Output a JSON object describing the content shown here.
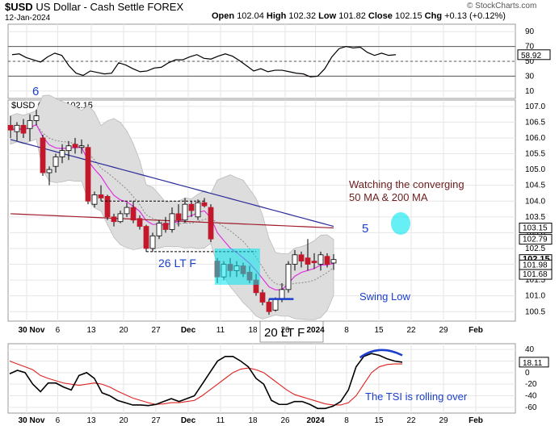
{
  "header": {
    "symbol": "$USD",
    "name": "US Dollar - Cash Settle",
    "exchange": "FOREX",
    "date": "12-Jan-2024",
    "credit": "© StockCharts.com",
    "open_label": "Open",
    "open": "102.04",
    "high_label": "High",
    "high": "102.32",
    "low_label": "Low",
    "low": "101.82",
    "close_label": "Close",
    "close": "102.15",
    "chg_label": "Chg",
    "chg": "+0.13 (+0.12%)",
    "main_legend": "$USD (Daily) 102.15"
  },
  "colors": {
    "up": "#ffffff",
    "down": "#c2182b",
    "bar_outline": "#000000",
    "ma50": "#2b2b99",
    "ma200": "#a01c2c",
    "bollinger_fill": "#dddddd",
    "bollinger_mid": "#888888",
    "magenta": "#dd33dd",
    "cyan": "#00e5ee",
    "rsi_band": "#7a3038",
    "annotation_blue": "#1a3fcc",
    "annotation_dark": "#6b1e1e"
  },
  "x_axis": {
    "labels": [
      "30 Nov",
      "6",
      "13",
      "20",
      "27",
      "Dec",
      "11",
      "18",
      "26",
      "2024",
      "8",
      "15",
      "22",
      "29",
      "Feb"
    ],
    "bold": [
      "Nov",
      "Dec",
      "2024",
      "Feb"
    ]
  },
  "rsi": {
    "value_label": "58.92",
    "ticks": [
      "90",
      "70",
      "50",
      "30",
      "10"
    ],
    "levels": [
      70,
      30
    ],
    "values": [
      59,
      60,
      55,
      52,
      49,
      56,
      61,
      58,
      44,
      34,
      31,
      37,
      35,
      33,
      34,
      48,
      45,
      40,
      36,
      37,
      41,
      42,
      48,
      52,
      52,
      56,
      59,
      54,
      53,
      57,
      60,
      57,
      51,
      44,
      37,
      40,
      36,
      38,
      38,
      36,
      34,
      33,
      29,
      30,
      40,
      56,
      67,
      70,
      68,
      69,
      62,
      58,
      61,
      58,
      59
    ]
  },
  "price": {
    "ticks": [
      "107.0",
      "106.5",
      "106.0",
      "105.5",
      "105.0",
      "104.5",
      "104.0",
      "103.5",
      "103.0",
      "102.5",
      "102.0",
      "101.5",
      "101.0",
      "100.5"
    ],
    "ylim": [
      100.2,
      107.2
    ],
    "boxed_labels": [
      "103.15",
      "102.79",
      "102.15",
      "101.98",
      "101.68"
    ],
    "candles": [
      {
        "o": 106.4,
        "h": 106.7,
        "l": 106.0,
        "c": 106.25
      },
      {
        "o": 106.2,
        "h": 106.5,
        "l": 105.9,
        "c": 106.4
      },
      {
        "o": 106.4,
        "h": 106.6,
        "l": 106.0,
        "c": 106.15
      },
      {
        "o": 106.3,
        "h": 106.75,
        "l": 105.9,
        "c": 106.55
      },
      {
        "o": 106.55,
        "h": 106.9,
        "l": 106.4,
        "c": 106.7
      },
      {
        "o": 106.0,
        "h": 106.1,
        "l": 104.8,
        "c": 104.9
      },
      {
        "o": 104.9,
        "h": 105.1,
        "l": 104.5,
        "c": 105.0
      },
      {
        "o": 105.1,
        "h": 105.5,
        "l": 104.9,
        "c": 105.4
      },
      {
        "o": 105.4,
        "h": 105.8,
        "l": 105.2,
        "c": 105.6
      },
      {
        "o": 105.6,
        "h": 105.9,
        "l": 105.3,
        "c": 105.75
      },
      {
        "o": 105.8,
        "h": 106.0,
        "l": 105.5,
        "c": 105.7
      },
      {
        "o": 105.7,
        "h": 105.95,
        "l": 105.5,
        "c": 105.75
      },
      {
        "o": 105.7,
        "h": 105.8,
        "l": 103.9,
        "c": 104.0
      },
      {
        "o": 103.9,
        "h": 104.3,
        "l": 103.8,
        "c": 104.2
      },
      {
        "o": 104.2,
        "h": 104.5,
        "l": 104.0,
        "c": 104.1
      },
      {
        "o": 104.15,
        "h": 104.2,
        "l": 103.4,
        "c": 103.5
      },
      {
        "o": 103.5,
        "h": 103.6,
        "l": 103.2,
        "c": 103.35
      },
      {
        "o": 103.35,
        "h": 103.7,
        "l": 103.3,
        "c": 103.6
      },
      {
        "o": 103.6,
        "h": 103.95,
        "l": 103.5,
        "c": 103.8
      },
      {
        "o": 103.8,
        "h": 104.0,
        "l": 103.3,
        "c": 103.4
      },
      {
        "o": 103.45,
        "h": 103.55,
        "l": 103.1,
        "c": 103.2
      },
      {
        "o": 103.2,
        "h": 103.25,
        "l": 102.4,
        "c": 102.5
      },
      {
        "o": 102.5,
        "h": 103.0,
        "l": 102.4,
        "c": 102.9
      },
      {
        "o": 102.9,
        "h": 103.4,
        "l": 102.8,
        "c": 103.3
      },
      {
        "o": 103.3,
        "h": 103.5,
        "l": 103.0,
        "c": 103.1
      },
      {
        "o": 103.1,
        "h": 103.8,
        "l": 103.0,
        "c": 103.6
      },
      {
        "o": 103.6,
        "h": 103.9,
        "l": 103.2,
        "c": 103.4
      },
      {
        "o": 103.4,
        "h": 104.1,
        "l": 103.3,
        "c": 103.9
      },
      {
        "o": 103.9,
        "h": 104.0,
        "l": 103.5,
        "c": 103.7
      },
      {
        "o": 103.5,
        "h": 104.05,
        "l": 103.4,
        "c": 103.95
      },
      {
        "o": 103.95,
        "h": 104.1,
        "l": 103.8,
        "c": 103.85
      },
      {
        "o": 103.8,
        "h": 103.9,
        "l": 102.7,
        "c": 102.8
      },
      {
        "o": 102.1,
        "h": 102.2,
        "l": 101.4,
        "c": 101.6
      },
      {
        "o": 101.6,
        "h": 102.1,
        "l": 101.5,
        "c": 102.0
      },
      {
        "o": 102.0,
        "h": 102.2,
        "l": 101.6,
        "c": 101.8
      },
      {
        "o": 101.8,
        "h": 102.1,
        "l": 101.6,
        "c": 101.95
      },
      {
        "o": 101.95,
        "h": 102.05,
        "l": 101.6,
        "c": 101.7
      },
      {
        "o": 101.75,
        "h": 101.95,
        "l": 101.4,
        "c": 101.5
      },
      {
        "o": 101.5,
        "h": 101.7,
        "l": 101.0,
        "c": 101.1
      },
      {
        "o": 101.1,
        "h": 101.2,
        "l": 100.7,
        "c": 100.8
      },
      {
        "o": 100.8,
        "h": 100.9,
        "l": 100.4,
        "c": 100.5
      },
      {
        "o": 100.55,
        "h": 100.95,
        "l": 100.5,
        "c": 100.9
      },
      {
        "o": 100.9,
        "h": 101.4,
        "l": 100.8,
        "c": 101.2
      },
      {
        "o": 101.2,
        "h": 102.1,
        "l": 101.1,
        "c": 102.0
      },
      {
        "o": 102.0,
        "h": 102.45,
        "l": 101.8,
        "c": 102.3
      },
      {
        "o": 102.3,
        "h": 102.4,
        "l": 101.9,
        "c": 102.1
      },
      {
        "o": 102.2,
        "h": 102.8,
        "l": 101.8,
        "c": 102.0
      },
      {
        "o": 102.1,
        "h": 102.35,
        "l": 101.85,
        "c": 102.05
      },
      {
        "o": 102.0,
        "h": 102.4,
        "l": 101.8,
        "c": 102.3
      },
      {
        "o": 102.25,
        "h": 102.35,
        "l": 101.9,
        "c": 102.0
      },
      {
        "o": 102.04,
        "h": 102.32,
        "l": 101.82,
        "c": 102.15
      }
    ]
  },
  "tsi": {
    "value_label": "18.11",
    "ticks": [
      "40",
      "20",
      "0",
      "-20",
      "-40",
      "-60"
    ],
    "tsi_values": [
      -2,
      4,
      0,
      -20,
      -33,
      -18,
      -18,
      -25,
      -30,
      -5,
      0,
      -10,
      -35,
      -40,
      -48,
      -52,
      -56,
      -56,
      -57,
      -55,
      -50,
      -45,
      -50,
      -45,
      -40,
      -20,
      0,
      20,
      28,
      28,
      20,
      10,
      -10,
      -20,
      -48,
      -55,
      -55,
      -50,
      -50,
      -55,
      -62,
      -62,
      -58,
      -50,
      -30,
      10,
      28,
      33,
      30,
      24,
      20,
      18
    ],
    "signal_values": [
      20,
      15,
      10,
      5,
      -5,
      -10,
      -14,
      -18,
      -20,
      -22,
      -20,
      -18,
      -20,
      -25,
      -32,
      -38,
      -44,
      -48,
      -52,
      -55,
      -54,
      -52,
      -52,
      -50,
      -48,
      -40,
      -30,
      -20,
      -10,
      0,
      6,
      8,
      5,
      0,
      -10,
      -20,
      -30,
      -38,
      -42,
      -46,
      -50,
      -54,
      -56,
      -56,
      -52,
      -40,
      -20,
      0,
      10,
      14,
      15,
      15
    ]
  },
  "annotations": {
    "six": "6",
    "five": "5",
    "converging_1": "Watching the converging",
    "converging_2": "50 MA & 200 MA",
    "lt26": "26 LT F",
    "lt20": "20 LT F",
    "swing_low": "Swing Low",
    "tsi_note": "The TSI is rolling over"
  }
}
